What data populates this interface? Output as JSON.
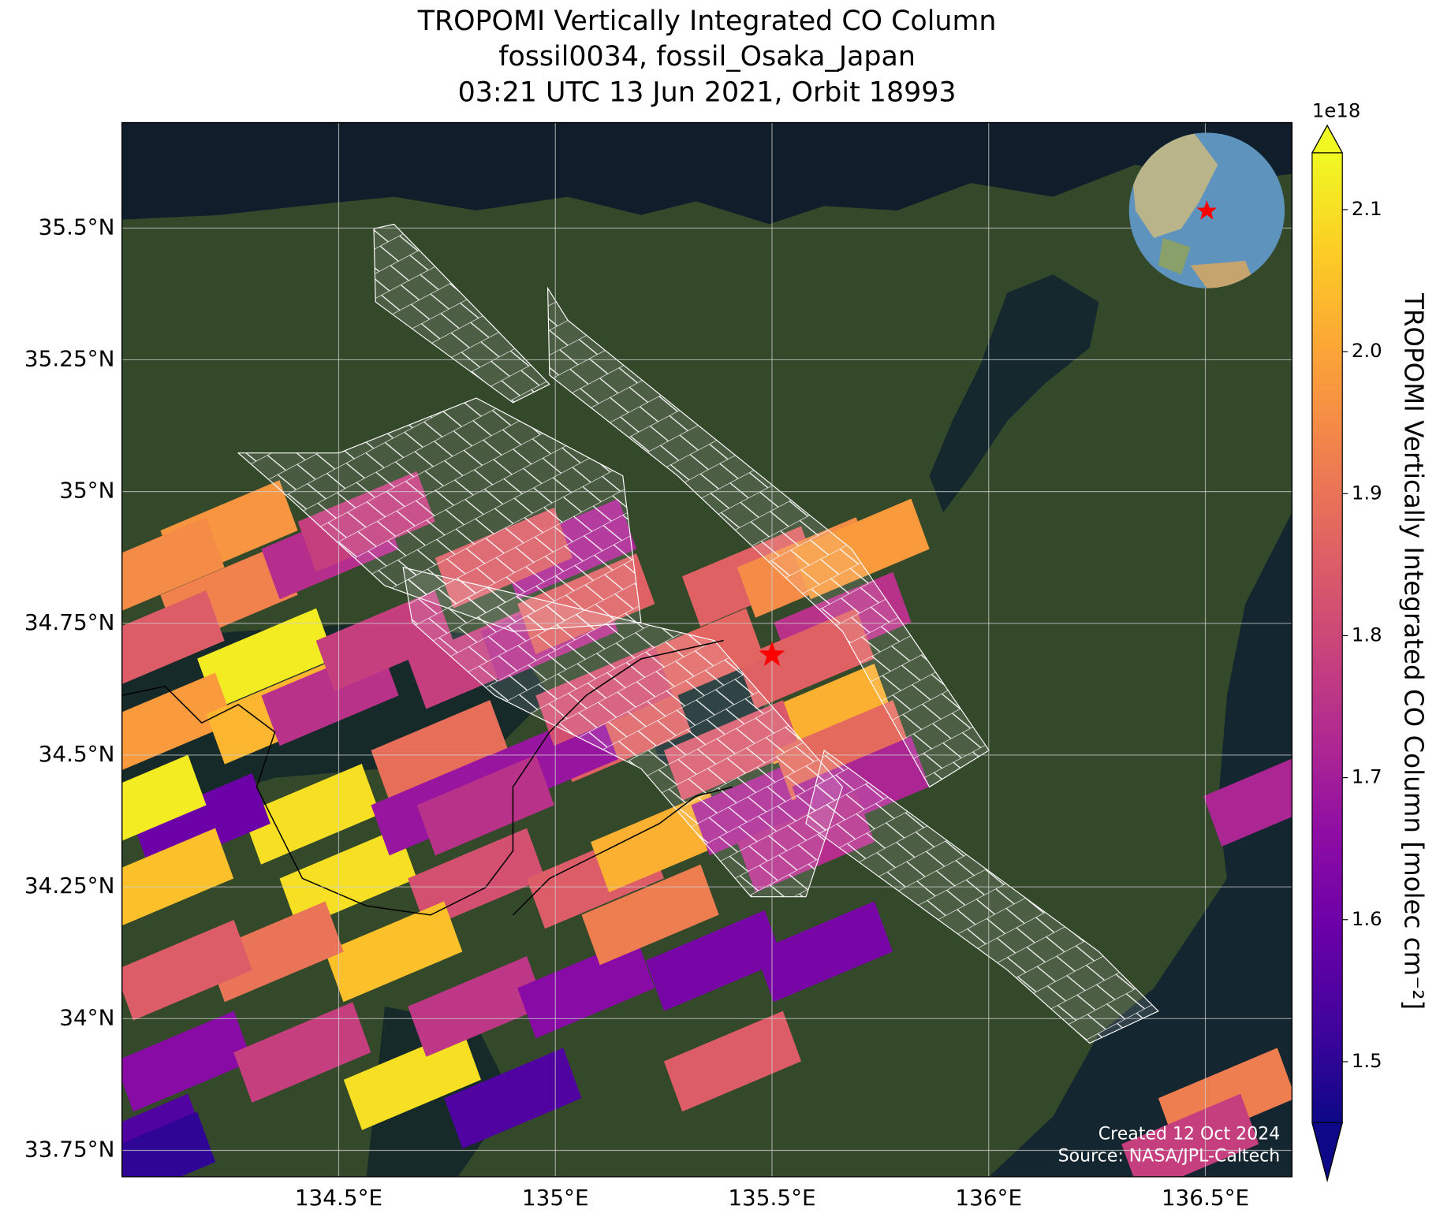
{
  "chart_data": {
    "type": "map",
    "title": [
      "TROPOMI Vertically Integrated CO Column",
      "fossil0034, fossil_Osaka_Japan",
      "03:21 UTC 13 Jun 2021, Orbit 18993"
    ],
    "xlim": [
      134.0,
      136.7
    ],
    "ylim": [
      33.7,
      35.7
    ],
    "xticks": [
      {
        "value": 134.5,
        "label": "134.5°E"
      },
      {
        "value": 135,
        "label": "135°E"
      },
      {
        "value": 135.5,
        "label": "135.5°E"
      },
      {
        "value": 136,
        "label": "136°E"
      },
      {
        "value": 136.5,
        "label": "136.5°E"
      }
    ],
    "yticks": [
      {
        "value": 33.75,
        "label": "33.75°N"
      },
      {
        "value": 34,
        "label": "34°N"
      },
      {
        "value": 34.25,
        "label": "34.25°N"
      },
      {
        "value": 34.5,
        "label": "34.5°N"
      },
      {
        "value": 34.75,
        "label": "34.75°N"
      },
      {
        "value": 35,
        "label": "35°N"
      },
      {
        "value": 35.25,
        "label": "35.25°N"
      },
      {
        "value": 35.5,
        "label": "35.5°N"
      }
    ],
    "grid": true,
    "colormap": "plasma",
    "clim": [
      1.457,
      2.14
    ],
    "cticks": [
      1.5,
      1.6,
      1.7,
      1.8,
      1.9,
      {
        "value": 2.0,
        "label": "2.0"
      },
      2.1
    ],
    "colorbar_exponent": "1e18",
    "colorbar_label": "TROPOMI Vertically Integrated CO Column [molec cm⁻²]",
    "site": {
      "lon": 135.5,
      "lat": 34.69,
      "color": "#ff0000"
    },
    "pixels": {
      "lon": [
        134.247,
        134.078,
        134.247,
        134.078,
        134.332,
        134.099,
        134.353,
        134.48,
        134.48,
        134.564,
        134.437,
        134.184,
        134.036,
        134.099,
        134.522,
        134.733,
        134.733,
        134.606,
        134.818,
        134.986,
        135.029,
        134.881,
        135.071,
        135.155,
        134.986,
        134.839,
        134.818,
        134.627,
        134.353,
        134.142,
        134.142,
        134.416,
        134.67,
        134.818,
        134.902,
        135.071,
        135.092,
        135.24,
        135.367,
        135.409,
        135.219,
        135.472,
        135.451,
        135.578,
        135.705,
        135.663,
        135.578,
        135.62,
        135.324,
        135.113,
        135.409,
        135.663,
        135.705,
        135.578,
        135.62,
        136.654,
        136.55,
        136.465,
        134.036,
        134.057
      ],
      "lat": [
        34.926,
        34.856,
        34.804,
        34.717,
        34.683,
        34.561,
        34.578,
        34.613,
        34.891,
        34.943,
        34.388,
        34.37,
        34.405,
        34.266,
        34.266,
        34.509,
        34.405,
        34.717,
        34.683,
        34.735,
        34.891,
        34.874,
        34.787,
        34.544,
        34.492,
        34.405,
        34.266,
        34.127,
        34.127,
        34.092,
        33.919,
        33.936,
        33.884,
        34.023,
        33.849,
        34.058,
        34.266,
        34.335,
        34.11,
        33.919,
        34.197,
        34.405,
        34.839,
        34.856,
        34.891,
        34.752,
        34.683,
        34.578,
        34.683,
        34.613,
        34.509,
        34.509,
        34.44,
        34.335,
        34.127,
        34.422,
        33.849,
        33.762,
        33.762,
        33.728
      ],
      "values": [
        1.97,
        1.95,
        1.93,
        1.85,
        2.12,
        1.98,
        2.03,
        1.75,
        1.74,
        1.78,
        2.1,
        1.6,
        2.12,
        2.05,
        2.1,
        1.89,
        1.68,
        1.78,
        1.78,
        1.74,
        1.72,
        1.85,
        1.86,
        1.86,
        1.68,
        1.75,
        1.82,
        2.05,
        1.9,
        1.85,
        1.65,
        1.78,
        2.1,
        1.76,
        1.55,
        1.65,
        1.85,
        2.02,
        1.62,
        1.85,
        1.92,
        1.72,
        1.86,
        1.95,
        1.98,
        1.75,
        1.86,
        2.02,
        1.87,
        1.82,
        1.84,
        1.88,
        1.72,
        1.74,
        1.62,
        1.72,
        1.92,
        1.78,
        1.55,
        1.5
      ]
    },
    "annotations": [
      "Created 12 Oct 2024",
      "Source: NASA/JPL-Caltech"
    ]
  }
}
